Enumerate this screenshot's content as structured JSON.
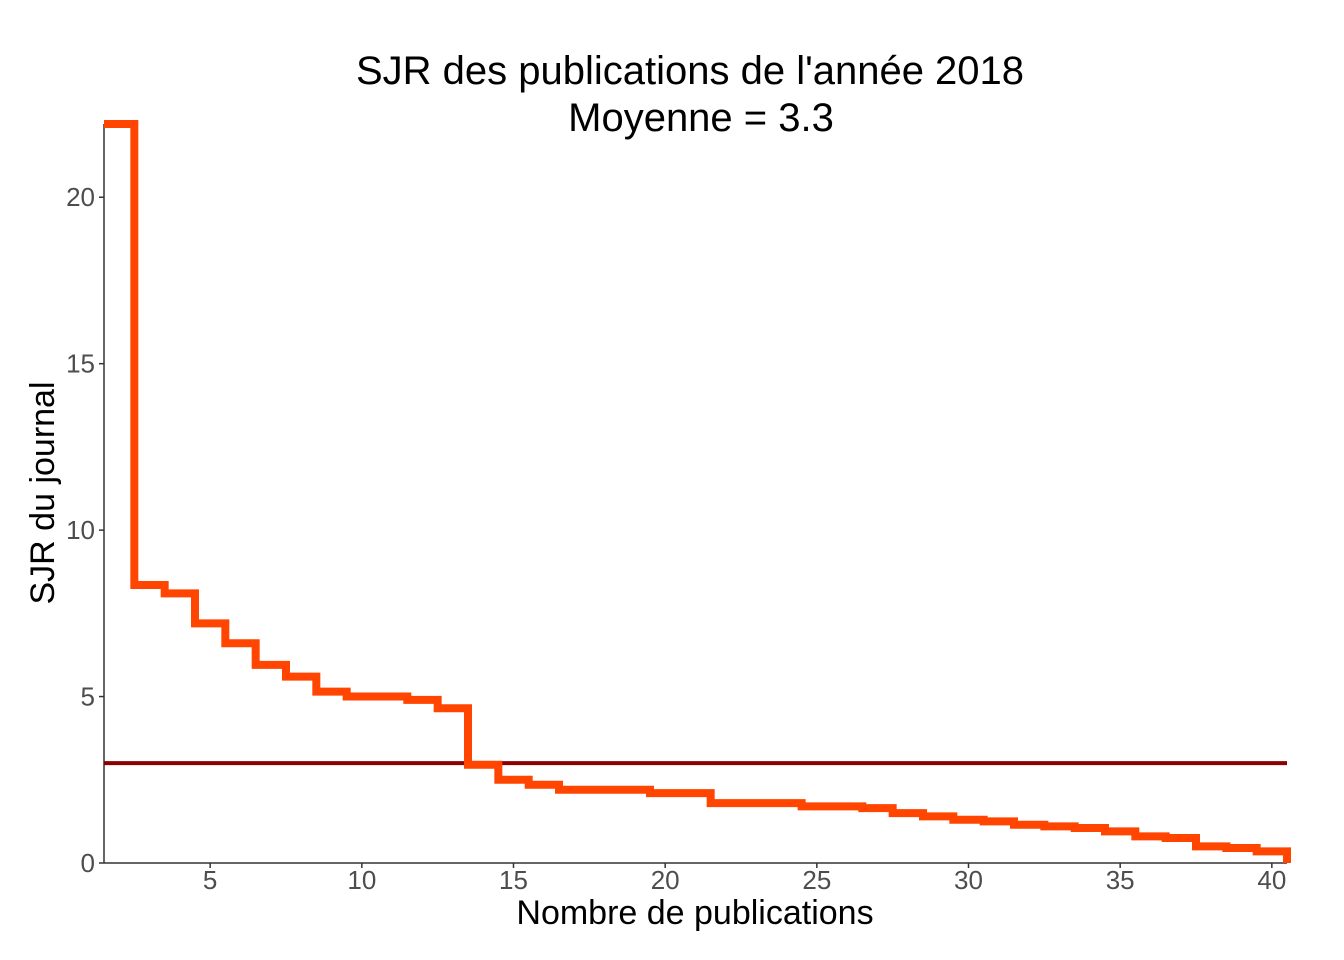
{
  "chart_data": {
    "type": "line",
    "subtype": "step",
    "title": "SJR des publications de l'année 2018",
    "subtitle": "Moyenne = 3.3",
    "xlabel": "Nombre de publications",
    "ylabel": "SJR du journal",
    "xlim": [
      1.5,
      40.5
    ],
    "ylim": [
      0,
      22.2
    ],
    "x_ticks": [
      5,
      10,
      15,
      20,
      25,
      30,
      35,
      40
    ],
    "y_ticks": [
      0,
      5,
      10,
      15,
      20
    ],
    "grid": false,
    "legend": "none",
    "series": [
      {
        "color": "#ff4500",
        "x": [
          1.5,
          2.5,
          3.5,
          4.5,
          5.5,
          6.5,
          7.5,
          8.5,
          9.5,
          10.5,
          11.5,
          12.5,
          13.5,
          14.5,
          15.5,
          16.5,
          17.5,
          18.5,
          19.5,
          20.5,
          21.5,
          22.5,
          23.5,
          24.5,
          25.5,
          26.5,
          27.5,
          28.5,
          29.5,
          30.5,
          31.5,
          32.5,
          33.5,
          34.5,
          35.5,
          36.5,
          37.5,
          38.5,
          39.5,
          40.5
        ],
        "values": [
          22.2,
          8.35,
          8.1,
          7.2,
          6.6,
          5.95,
          5.6,
          5.15,
          5.0,
          5.0,
          4.9,
          4.65,
          2.95,
          2.5,
          2.35,
          2.2,
          2.2,
          2.2,
          2.1,
          2.1,
          1.8,
          1.8,
          1.8,
          1.7,
          1.7,
          1.65,
          1.5,
          1.4,
          1.3,
          1.25,
          1.15,
          1.1,
          1.05,
          0.95,
          0.8,
          0.75,
          0.5,
          0.45,
          0.35,
          0.0
        ]
      }
    ],
    "reference_line": {
      "y": 3.0,
      "color": "#8b0000"
    }
  }
}
